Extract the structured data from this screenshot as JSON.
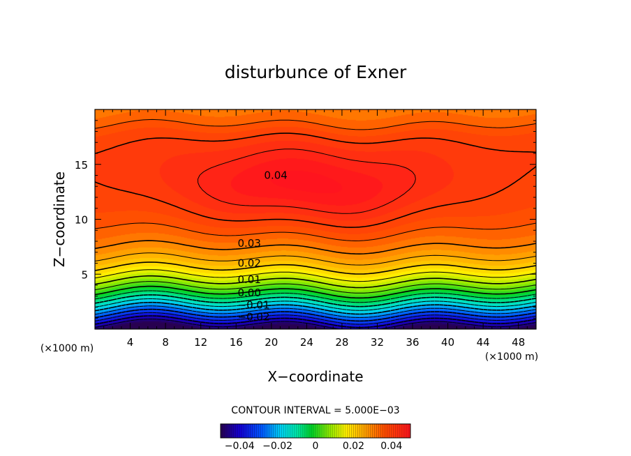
{
  "chart_data": {
    "type": "heatmap",
    "title": "disturbunce of Exner",
    "xlabel": "X−coordinate",
    "ylabel": "Z−coordinate",
    "x_unit": "(×1000 m)",
    "y_unit": "(×1000 m)",
    "xlim": [
      0,
      50
    ],
    "ylim": [
      0,
      20
    ],
    "x_ticks": [
      4,
      8,
      12,
      16,
      20,
      24,
      28,
      32,
      36,
      40,
      44,
      48
    ],
    "y_ticks": [
      5,
      10,
      15
    ],
    "x_tick_labels": [
      "4",
      "8",
      "12",
      "16",
      "20",
      "24",
      "28",
      "32",
      "36",
      "40",
      "44",
      "48"
    ],
    "y_tick_labels": [
      "5",
      "10",
      "15"
    ],
    "contour_interval_text": "CONTOUR INTERVAL = 5.000E−03",
    "contour_interval": 0.005,
    "value_range": [
      -0.05,
      0.05
    ],
    "contour_labels": [
      {
        "text": "0.04",
        "value": 0.04,
        "x": 20.5,
        "z": 14.0
      },
      {
        "text": "0.03",
        "value": 0.03,
        "x": 17.5,
        "z": 7.8
      },
      {
        "text": "0.02",
        "value": 0.02,
        "x": 17.5,
        "z": 6.0
      },
      {
        "text": "0.01",
        "value": 0.01,
        "x": 17.5,
        "z": 4.5
      },
      {
        "text": "0.00",
        "value": 0.0,
        "x": 17.5,
        "z": 3.3
      },
      {
        "text": "−0.01",
        "value": -0.01,
        "x": 18.0,
        "z": 2.2
      },
      {
        "text": "−0.02",
        "value": -0.02,
        "x": 18.0,
        "z": 1.1
      }
    ],
    "field_description": {
      "maximum": {
        "value": 0.042,
        "x": 24,
        "z": 13
      }
    },
    "colorbar": {
      "ticks": [
        -0.04,
        -0.02,
        0,
        0.02,
        0.04
      ],
      "tick_labels": [
        "−0.04",
        "−0.02",
        "0",
        "0.02",
        "0.04"
      ],
      "range": [
        -0.05,
        0.05
      ]
    },
    "grid": false,
    "legend": "none"
  }
}
